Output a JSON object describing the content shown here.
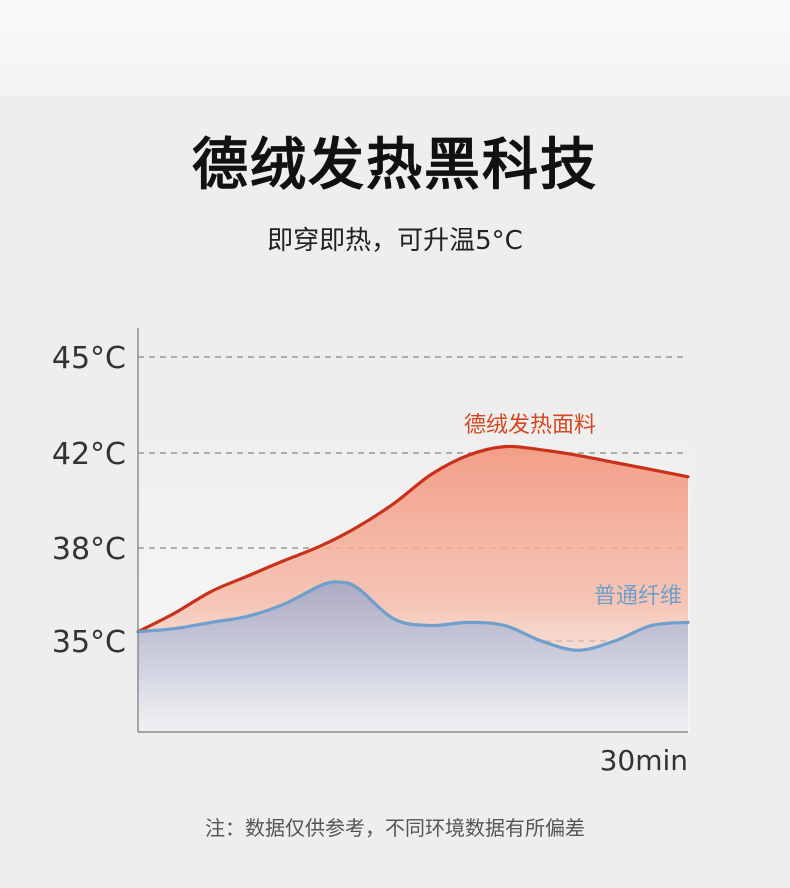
{
  "header": {
    "title": "德绒发热黑科技",
    "subtitle": "即穿即热，可升温5°C"
  },
  "footer": {
    "note": "注：数据仅供参考，不同环境数据有所偏差"
  },
  "colors": {
    "warm_line": "#c8321a",
    "warm_fill": "#f29a84",
    "cool_line": "#6f9fcd",
    "cool_fill": "#b9c6dd",
    "grid": "#888888",
    "axis": "#777777"
  },
  "chart_data": {
    "type": "area",
    "xlabel": "30min",
    "y_ticks": [
      {
        "value": 35,
        "label": "35°C"
      },
      {
        "value": 38,
        "label": "38°C"
      },
      {
        "value": 42,
        "label": "42°C"
      },
      {
        "value": 45,
        "label": "45°C"
      }
    ],
    "x_range": [
      0,
      30
    ],
    "grid": "dashed horizontal lines at tick values",
    "series": [
      {
        "name": "德绒发热面料",
        "x": [
          0,
          2,
          4,
          6,
          8,
          10,
          12,
          14,
          16,
          18,
          20,
          22,
          24,
          26,
          28,
          30
        ],
        "values": [
          35.3,
          35.9,
          36.6,
          37.1,
          37.6,
          38.1,
          38.9,
          39.9,
          41.1,
          41.9,
          42.2,
          42.1,
          41.9,
          41.6,
          41.3,
          41.0
        ]
      },
      {
        "name": "普通纤维",
        "x": [
          0,
          2,
          4,
          6,
          8,
          10,
          11,
          12,
          14,
          16,
          18,
          20,
          22,
          24,
          26,
          28,
          30
        ],
        "values": [
          35.3,
          35.4,
          35.6,
          35.8,
          36.2,
          36.8,
          36.9,
          36.7,
          35.7,
          35.5,
          35.6,
          35.5,
          35.0,
          34.7,
          35.0,
          35.5,
          35.6
        ]
      }
    ]
  }
}
